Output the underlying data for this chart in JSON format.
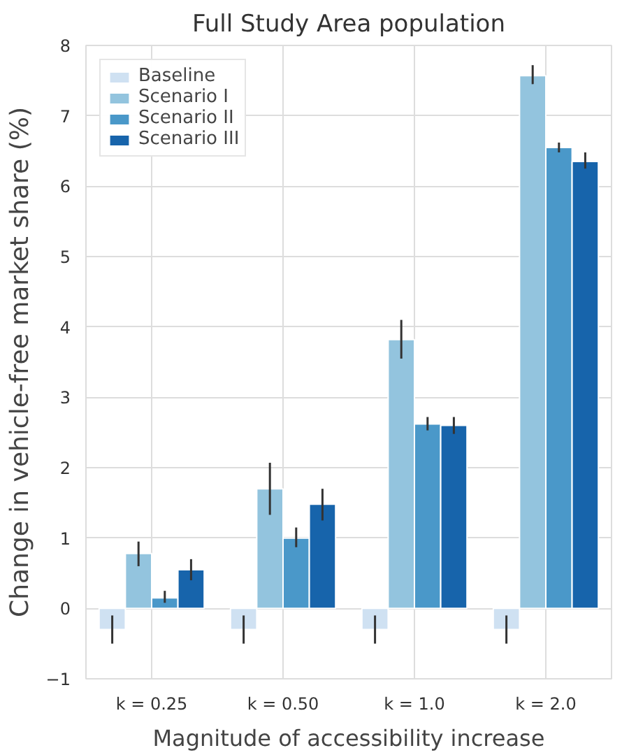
{
  "chart_data": {
    "type": "bar",
    "title": "Full Study Area population",
    "xlabel": "Magnitude of accessibility increase",
    "ylabel": "Change in vehicle-free market share (%)",
    "categories": [
      "k = 0.25",
      "k = 0.50",
      "k = 1.0",
      "k = 2.0"
    ],
    "series": [
      {
        "name": "Baseline",
        "color": "#cfe1f2",
        "values": [
          -0.3,
          -0.3,
          -0.3,
          -0.3
        ],
        "errors": [
          0.2,
          0.2,
          0.2,
          0.2
        ]
      },
      {
        "name": "Scenario I",
        "color": "#93c4de",
        "values": [
          0.78,
          1.7,
          3.82,
          7.57
        ],
        "errors": [
          [
            0.6,
            0.95
          ],
          [
            1.33,
            2.07
          ],
          [
            3.55,
            4.1
          ],
          [
            7.45,
            7.72
          ]
        ]
      },
      {
        "name": "Scenario II",
        "color": "#4a98c9",
        "values": [
          0.15,
          1.0,
          2.62,
          6.55
        ],
        "errors": [
          [
            0.08,
            0.25
          ],
          [
            0.87,
            1.15
          ],
          [
            2.53,
            2.72
          ],
          [
            6.48,
            6.62
          ]
        ]
      },
      {
        "name": "Scenario III",
        "color": "#1764ab",
        "values": [
          0.55,
          1.48,
          2.6,
          6.35
        ],
        "errors": [
          [
            0.4,
            0.7
          ],
          [
            1.25,
            1.7
          ],
          [
            2.48,
            2.72
          ],
          [
            6.25,
            6.48
          ]
        ]
      }
    ],
    "ylim": [
      -1,
      8
    ],
    "yticks": [
      -1,
      0,
      1,
      2,
      3,
      4,
      5,
      6,
      7,
      8
    ],
    "grid": true,
    "legend": "top left"
  }
}
